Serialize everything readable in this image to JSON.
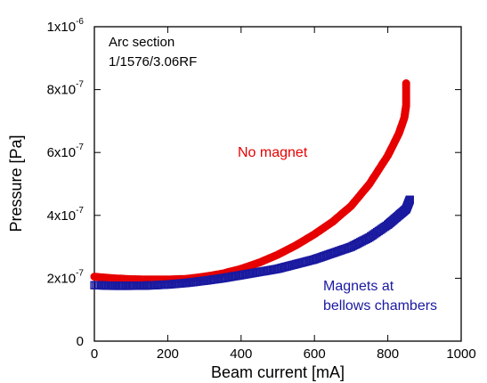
{
  "chart_data": {
    "type": "scatter",
    "xlabel": "Beam current [mA]",
    "ylabel": "Pressure [Pa]",
    "xlim": [
      0,
      1000
    ],
    "ylim": [
      0,
      1e-06
    ],
    "grid": false,
    "x_ticks": [
      {
        "value": 0,
        "label": "0"
      },
      {
        "value": 200,
        "label": "200"
      },
      {
        "value": 400,
        "label": "400"
      },
      {
        "value": 600,
        "label": "600"
      },
      {
        "value": 800,
        "label": "800"
      },
      {
        "value": 1000,
        "label": "1000"
      }
    ],
    "y_ticks": [
      {
        "value": 0,
        "mantissa": "0",
        "exponent": ""
      },
      {
        "value": 2e-07,
        "mantissa": "2x10",
        "exponent": "-7"
      },
      {
        "value": 4e-07,
        "mantissa": "4x10",
        "exponent": "-7"
      },
      {
        "value": 6e-07,
        "mantissa": "6x10",
        "exponent": "-7"
      },
      {
        "value": 8e-07,
        "mantissa": "8x10",
        "exponent": "-7"
      },
      {
        "value": 1e-06,
        "mantissa": "1x10",
        "exponent": "-6"
      }
    ],
    "annotation_lines": [
      "Arc section",
      "1/1576/3.06RF"
    ],
    "series": [
      {
        "label_lines": [
          "No magnet"
        ],
        "color": "#e60000",
        "marker": "filled-circle",
        "points": [
          [
            0,
            2.05e-07
          ],
          [
            50,
            2e-07
          ],
          [
            100,
            1.97e-07
          ],
          [
            150,
            1.96e-07
          ],
          [
            200,
            1.96e-07
          ],
          [
            250,
            1.98e-07
          ],
          [
            300,
            2.05e-07
          ],
          [
            350,
            2.15e-07
          ],
          [
            400,
            2.3e-07
          ],
          [
            450,
            2.5e-07
          ],
          [
            500,
            2.75e-07
          ],
          [
            550,
            3.05e-07
          ],
          [
            600,
            3.4e-07
          ],
          [
            650,
            3.8e-07
          ],
          [
            700,
            4.3e-07
          ],
          [
            750,
            5e-07
          ],
          [
            800,
            5.9e-07
          ],
          [
            830,
            6.6e-07
          ],
          [
            845,
            7.1e-07
          ],
          [
            850,
            7.5e-07
          ],
          [
            850,
            8.2e-07
          ]
        ]
      },
      {
        "label_lines": [
          "Magnets at",
          "bellows chambers"
        ],
        "color": "#1a1aa0",
        "marker": "open-square",
        "points": [
          [
            0,
            1.78e-07
          ],
          [
            50,
            1.76e-07
          ],
          [
            100,
            1.76e-07
          ],
          [
            150,
            1.77e-07
          ],
          [
            200,
            1.8e-07
          ],
          [
            250,
            1.85e-07
          ],
          [
            300,
            1.92e-07
          ],
          [
            350,
            2e-07
          ],
          [
            400,
            2.1e-07
          ],
          [
            450,
            2.2e-07
          ],
          [
            500,
            2.3e-07
          ],
          [
            550,
            2.45e-07
          ],
          [
            600,
            2.6e-07
          ],
          [
            650,
            2.8e-07
          ],
          [
            700,
            3e-07
          ],
          [
            750,
            3.3e-07
          ],
          [
            800,
            3.7e-07
          ],
          [
            830,
            4e-07
          ],
          [
            850,
            4.2e-07
          ],
          [
            860,
            4.5e-07
          ]
        ]
      }
    ]
  }
}
